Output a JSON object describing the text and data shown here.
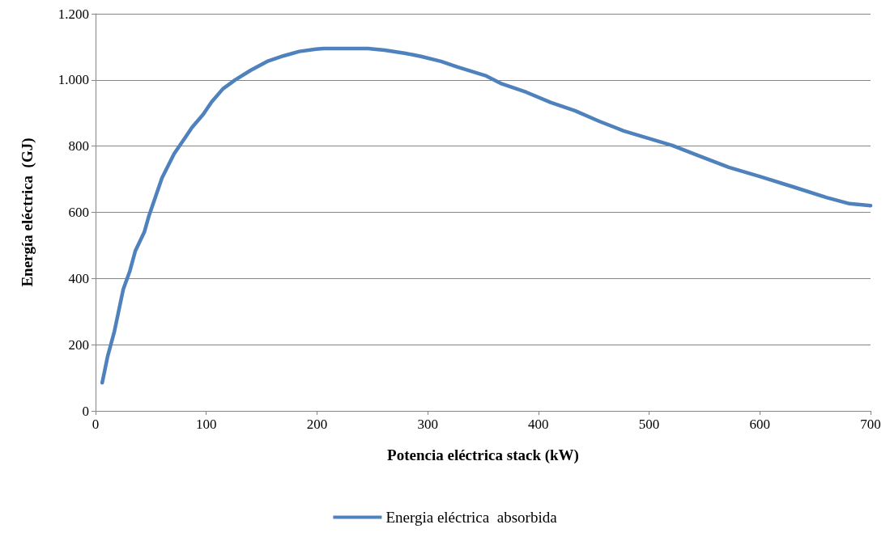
{
  "chart_data": {
    "type": "line",
    "xlabel": "Potencia eléctrica stack (kW)",
    "ylabel": "Energía eléctrica  (GJ)",
    "series": [
      {
        "name": "Energia eléctrica  absorbida",
        "color": "#4f81bd",
        "x": [
          6,
          11,
          17,
          25,
          31,
          36,
          44,
          48,
          60,
          71,
          82,
          87,
          97,
          105,
          115,
          126,
          140,
          155,
          170,
          184,
          199,
          206,
          246,
          261,
          279,
          294,
          312,
          327,
          353,
          367,
          389,
          411,
          433,
          455,
          477,
          499,
          521,
          543,
          572,
          601,
          630,
          660,
          681,
          700
        ],
        "values": [
          85,
          166,
          240,
          367,
          423,
          484,
          540,
          587,
          704,
          777,
          831,
          856,
          895,
          934,
          973,
          1000,
          1029,
          1056,
          1073,
          1086,
          1093,
          1095,
          1095,
          1090,
          1081,
          1071,
          1056,
          1039,
          1012,
          988,
          963,
          932,
          907,
          875,
          846,
          824,
          802,
          773,
          736,
          707,
          677,
          645,
          626,
          620
        ]
      }
    ],
    "xlim": [
      0,
      700
    ],
    "xticks": [
      0,
      100,
      200,
      300,
      400,
      500,
      600,
      700
    ],
    "ylim": [
      0,
      1200
    ],
    "yticks": [
      0,
      200,
      400,
      600,
      800,
      {
        "value": 1000,
        "label": "1.000"
      },
      {
        "value": 1200,
        "label": "1.200"
      }
    ],
    "grid": "y",
    "legend": "bottom",
    "marker": "none",
    "line_style": "solid"
  }
}
